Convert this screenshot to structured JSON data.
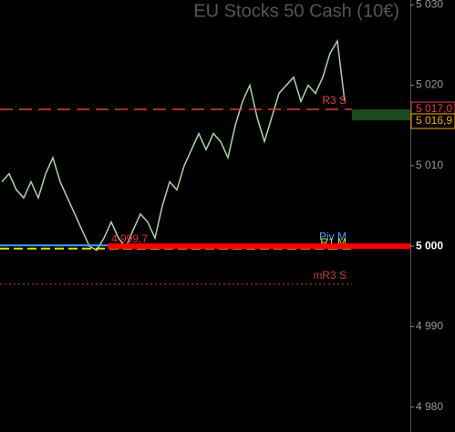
{
  "chart_data": {
    "type": "line",
    "title": "EU Stocks 50 Cash (10€)",
    "ylim": [
      4976.9,
      5030.6
    ],
    "yticks": [
      {
        "value": 5030,
        "label": "5 030"
      },
      {
        "value": 5020,
        "label": "5 020"
      },
      {
        "value": 5010,
        "label": "5 010"
      },
      {
        "value": 5000,
        "label": "5 000"
      },
      {
        "value": 4990,
        "label": "4 990"
      },
      {
        "value": 4980,
        "label": "4 980"
      }
    ],
    "series": [
      {
        "color": "#a8d8a0",
        "values": [
          5008,
          5009,
          5007,
          5006,
          5008,
          5006,
          5009,
          5011,
          5008,
          5006,
          5004,
          5002,
          5000,
          4999.5,
          5001,
          5003,
          5001,
          4999.8,
          5002,
          5004,
          5003,
          5001,
          5005,
          5008,
          5007,
          5010,
          5012,
          5014,
          5012,
          5014,
          5013,
          5011,
          5015,
          5018,
          5020,
          5016,
          5013,
          5016,
          5019,
          5020,
          5021,
          5018,
          5020,
          5019,
          5021,
          5024,
          5025.5,
          5018
        ]
      }
    ],
    "levels": [
      {
        "name": "R3 S",
        "value": 5017,
        "value_label": "5 017,0",
        "color": "#e04040",
        "dash": "14 7",
        "width": 1.5
      },
      {
        "name": "Piv M",
        "value": 5000.1,
        "color": "#40a0ff",
        "width": 2
      },
      {
        "name": "R1 M",
        "value": 4999.7,
        "color": "#e0e000",
        "dash": "10 5",
        "width": 2
      },
      {
        "value": 5000,
        "color": "#ff0000",
        "width": 6
      },
      {
        "name": "mR3 S",
        "value": 4995.3,
        "color": "#c04040",
        "dash": "2 3",
        "width": 1
      }
    ],
    "low": {
      "label": "4 999,7",
      "value": 4999.7
    },
    "last": {
      "value": 5016.9,
      "label": "5 016,9",
      "color": "#ffa500"
    }
  }
}
